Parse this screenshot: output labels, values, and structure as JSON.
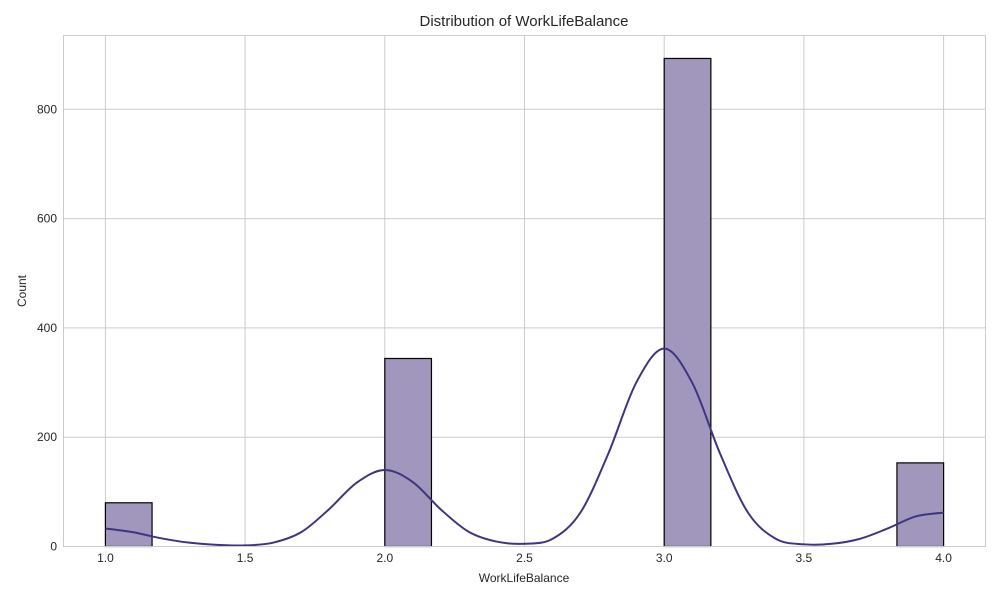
{
  "chart_data": {
    "type": "bar",
    "title": "Distribution of WorkLifeBalance",
    "xlabel": "WorkLifeBalance",
    "ylabel": "Count",
    "xlim": [
      0.85,
      4.15
    ],
    "ylim": [
      0,
      935
    ],
    "xticks": [
      1.0,
      1.5,
      2.0,
      2.5,
      3.0,
      3.5,
      4.0
    ],
    "xtick_labels": [
      "1.0",
      "1.5",
      "2.0",
      "2.5",
      "3.0",
      "3.5",
      "4.0"
    ],
    "yticks": [
      0,
      200,
      400,
      600,
      800
    ],
    "ytick_labels": [
      "0",
      "200",
      "400",
      "600",
      "800"
    ],
    "grid": true,
    "bars": [
      {
        "x_start": 1.0,
        "x_end": 1.167,
        "count": 80
      },
      {
        "x_start": 2.0,
        "x_end": 2.167,
        "count": 344
      },
      {
        "x_start": 3.0,
        "x_end": 3.167,
        "count": 893
      },
      {
        "x_start": 3.833,
        "x_end": 4.0,
        "count": 153
      }
    ],
    "kde": {
      "x": [
        1.0,
        1.1,
        1.2,
        1.3,
        1.4,
        1.5,
        1.6,
        1.7,
        1.8,
        1.9,
        2.0,
        2.1,
        2.2,
        2.3,
        2.4,
        2.5,
        2.6,
        2.7,
        2.8,
        2.9,
        3.0,
        3.1,
        3.2,
        3.3,
        3.4,
        3.5,
        3.6,
        3.7,
        3.8,
        3.9,
        4.0
      ],
      "y": [
        33,
        26,
        15,
        7,
        3,
        2,
        7,
        26,
        68,
        117,
        140,
        118,
        68,
        27,
        9,
        5,
        14,
        62,
        170,
        300,
        362,
        300,
        170,
        62,
        14,
        4,
        5,
        14,
        33,
        55,
        62
      ]
    },
    "colors": {
      "bar_fill": "#a197bd",
      "bar_edge": "#000000",
      "kde_line": "#3e3582",
      "grid": "#cccccc"
    }
  }
}
